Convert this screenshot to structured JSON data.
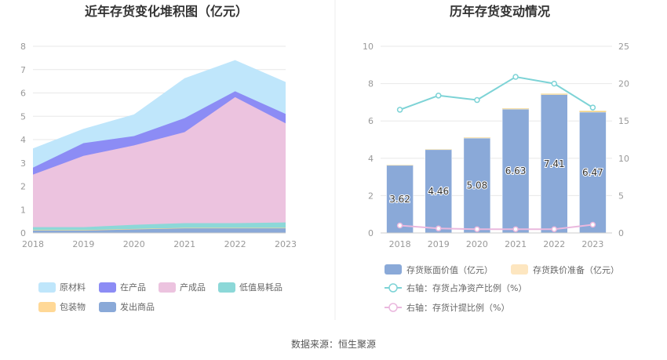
{
  "source_label": "数据来源：恒生聚源",
  "chart_data": [
    {
      "type": "area",
      "title": "近年存货变化堆积图（亿元）",
      "x": [
        "2018",
        "2019",
        "2020",
        "2021",
        "2022",
        "2023"
      ],
      "ylim": [
        0,
        8
      ],
      "yticks": [
        "0",
        "1",
        "2",
        "3",
        "4",
        "5",
        "6",
        "7",
        "8"
      ],
      "stacked": true,
      "grid": true,
      "legend_position": "bottom",
      "series": [
        {
          "name": "发出商品",
          "color": "#8aa9d8",
          "values": [
            0.1,
            0.1,
            0.15,
            0.2,
            0.2,
            0.2
          ]
        },
        {
          "name": "包装物",
          "color": "#ffd896",
          "values": [
            0.02,
            0.02,
            0.02,
            0.02,
            0.02,
            0.02
          ]
        },
        {
          "name": "低值易耗品",
          "color": "#8cd8d8",
          "values": [
            0.13,
            0.13,
            0.18,
            0.2,
            0.2,
            0.23
          ]
        },
        {
          "name": "产成品",
          "color": "#ecc3df",
          "values": [
            2.25,
            3.05,
            3.4,
            3.9,
            5.4,
            4.25
          ]
        },
        {
          "name": "在产品",
          "color": "#8c8cf5",
          "values": [
            0.3,
            0.55,
            0.4,
            0.6,
            0.25,
            0.4
          ]
        },
        {
          "name": "原材料",
          "color": "#bfe6fb",
          "values": [
            0.82,
            0.61,
            0.93,
            1.71,
            1.34,
            1.37
          ]
        }
      ]
    },
    {
      "type": "bar",
      "title": "历年存货变动情况",
      "categories": [
        "2018",
        "2019",
        "2020",
        "2021",
        "2022",
        "2023"
      ],
      "ylim": [
        0,
        10
      ],
      "yticks": [
        "0",
        "2",
        "4",
        "6",
        "8",
        "10"
      ],
      "y2lim": [
        0,
        25
      ],
      "y2ticks": [
        "0",
        "5",
        "10",
        "15",
        "20",
        "25"
      ],
      "grid": true,
      "legend_position": "bottom",
      "series": [
        {
          "name": "存货账面价值（亿元）",
          "type": "bar",
          "axis": "left",
          "color": "#8aa9d8",
          "values": [
            3.62,
            4.46,
            5.08,
            6.63,
            7.41,
            6.47
          ],
          "labels": [
            "3.62",
            "4.46",
            "5.08",
            "6.63",
            "7.41",
            "6.47"
          ]
        },
        {
          "name": "存货跌价准备（亿元）",
          "type": "bar",
          "axis": "left",
          "color": "#fde6c0",
          "values": [
            0.02,
            0.02,
            0.03,
            0.04,
            0.05,
            0.07
          ]
        },
        {
          "name": "右轴：存货占净资产比例（%）",
          "type": "line",
          "axis": "right",
          "color": "#7dd3d6",
          "values": [
            16.5,
            18.4,
            17.8,
            20.9,
            20.0,
            16.8
          ]
        },
        {
          "name": "右轴：存货计提比例（%）",
          "type": "line",
          "axis": "right",
          "color": "#eab8de",
          "values": [
            1.0,
            0.6,
            0.5,
            0.5,
            0.5,
            1.1
          ]
        }
      ]
    }
  ]
}
